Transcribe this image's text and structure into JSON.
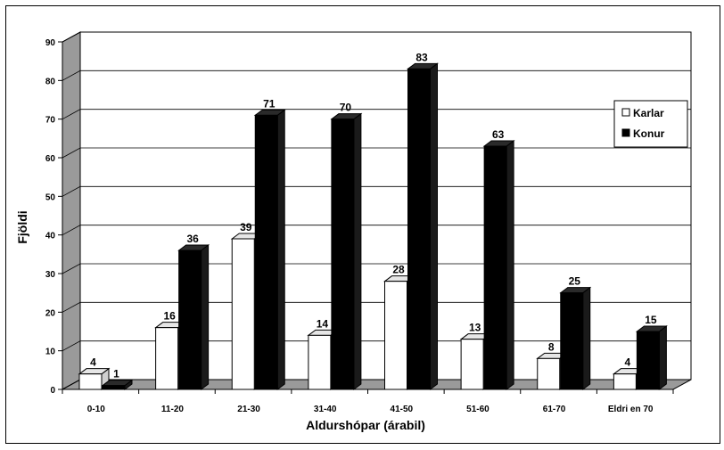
{
  "chart_data": {
    "type": "bar",
    "categories": [
      "0-10",
      "11-20",
      "21-30",
      "31-40",
      "41-50",
      "51-60",
      "61-70",
      "Eldri en 70"
    ],
    "series": [
      {
        "name": "Karlar",
        "values": [
          4,
          16,
          39,
          14,
          28,
          13,
          8,
          4
        ],
        "color": "#ffffff"
      },
      {
        "name": "Konur",
        "values": [
          1,
          36,
          71,
          70,
          83,
          63,
          25,
          15
        ],
        "color": "#000000"
      }
    ],
    "xlabel": "Aldurshópar (árabil)",
    "ylabel": "Fjöldi",
    "ylim": [
      0,
      90
    ],
    "yticks": [
      0,
      10,
      20,
      30,
      40,
      50,
      60,
      70,
      80,
      90
    ],
    "grid": true,
    "legend_position": "right",
    "three_d": true
  }
}
